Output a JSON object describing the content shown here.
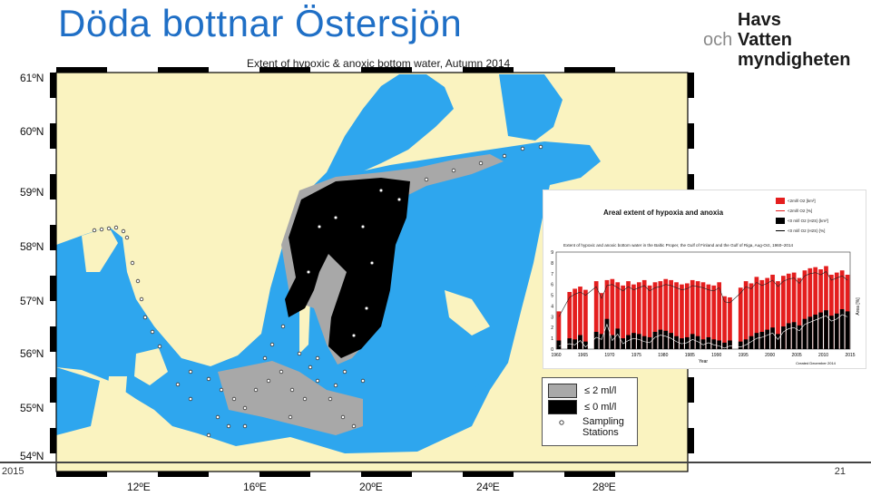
{
  "slide": {
    "title": "Döda bottnar Östersjön",
    "year": "2015",
    "page_number": "21"
  },
  "logo": {
    "prefix": "och",
    "line1": "Havs",
    "line2": "Vatten",
    "line3": "myndigheten"
  },
  "map": {
    "title": "Extent of hypoxic & anoxic bottom water, Autumn 2014",
    "colors": {
      "land": "#faf3c0",
      "sea": "#2ea6ee",
      "hypoxic": "#a8a8a8",
      "anoxic": "#000000"
    },
    "lat_labels": [
      "61ºN",
      "60ºN",
      "59ºN",
      "58ºN",
      "57ºN",
      "56ºN",
      "55ºN",
      "54ºN"
    ],
    "lon_labels": [
      "12ºE",
      "16ºE",
      "20ºE",
      "24ºE",
      "28ºE"
    ],
    "legend": {
      "hypoxic_label": "≤ 2 ml/l",
      "anoxic_label": "≤ 0 ml/l",
      "stations_label_1": "Sampling",
      "stations_label_2": "Stations"
    }
  },
  "inset_chart": {
    "title": "Areal extent of hypoxia and anoxia",
    "subtitle": "Extent of hypoxic and anoxic bottom water in the Baltic Proper, the Gulf of Finland and the Gulf of Riga, Aug-Oct, 1960–2014",
    "legend": [
      "<2ml/l O2 [km²]",
      "<2ml/l O2 [%]",
      "<0 ml/l O2 (H2S) [km²]",
      "<0 ml/l O2 (H2S) [%]"
    ],
    "y_left_max": 9,
    "y_right_label": "Area [%]",
    "x_label": "Year",
    "created": "Created December 2014",
    "chart_data": {
      "type": "bar",
      "x": [
        1960,
        1961,
        1962,
        1963,
        1964,
        1965,
        1966,
        1967,
        1968,
        1969,
        1970,
        1971,
        1972,
        1973,
        1974,
        1975,
        1976,
        1977,
        1978,
        1979,
        1980,
        1981,
        1982,
        1983,
        1984,
        1985,
        1986,
        1987,
        1988,
        1989,
        1990,
        1991,
        1992,
        1993,
        1994,
        1995,
        1996,
        1997,
        1998,
        1999,
        2000,
        2001,
        2002,
        2003,
        2004,
        2005,
        2006,
        2007,
        2008,
        2009,
        2010,
        2011,
        2012,
        2013,
        2014
      ],
      "x_ticks": [
        1960,
        1965,
        1970,
        1975,
        1980,
        1985,
        1990,
        1995,
        2000,
        2005,
        2010,
        2015
      ],
      "series": [
        {
          "name": "<2ml/l O2 [km²]",
          "color": "#e41e1e",
          "values": [
            3.5,
            0,
            5.3,
            5.6,
            5.8,
            5.5,
            0,
            6.3,
            5.2,
            6.4,
            6.5,
            6.2,
            5.9,
            6.3,
            6.0,
            6.2,
            6.4,
            5.9,
            6.2,
            6.3,
            6.5,
            6.4,
            6.2,
            6.0,
            6.1,
            6.4,
            6.3,
            6.2,
            6.0,
            5.9,
            6.2,
            4.9,
            4.8,
            0,
            5.7,
            6.3,
            6.1,
            6.7,
            6.4,
            6.6,
            6.9,
            6.3,
            6.8,
            7.0,
            7.1,
            6.6,
            7.3,
            7.5,
            7.6,
            7.4,
            7.7,
            6.9,
            7.1,
            7.3,
            6.9
          ]
        },
        {
          "name": "<0 ml/l O2 (H2S) [km²]",
          "color": "#000000",
          "values": [
            0.8,
            0,
            1.0,
            0.9,
            1.3,
            0.7,
            0,
            1.6,
            1.4,
            2.8,
            1.3,
            1.9,
            1.0,
            1.3,
            1.5,
            1.4,
            1.2,
            1.1,
            1.6,
            1.8,
            1.7,
            1.5,
            1.2,
            1.0,
            1.1,
            1.4,
            1.2,
            0.9,
            1.1,
            0.9,
            0.8,
            0.6,
            0.8,
            0,
            0.7,
            0.9,
            1.2,
            1.5,
            1.6,
            1.8,
            2.0,
            1.4,
            2.1,
            2.4,
            2.5,
            2.2,
            2.8,
            3.0,
            3.2,
            3.4,
            3.6,
            3.1,
            3.3,
            3.7,
            3.5
          ]
        }
      ],
      "y_left_max": 9
    }
  }
}
